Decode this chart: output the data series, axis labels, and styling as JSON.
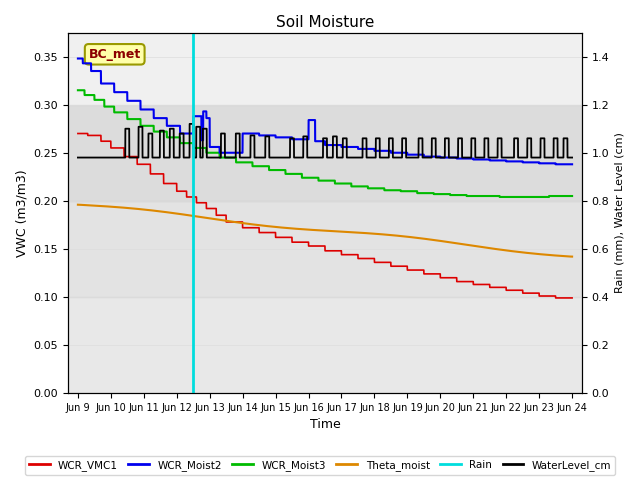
{
  "title": "Soil Moisture",
  "xlabel": "Time",
  "ylabel_left": "VWC (m3/m3)",
  "ylabel_right": "Rain (mm), Water Level (cm)",
  "xlim_days": [
    0,
    15
  ],
  "ylim_left": [
    0.0,
    0.375
  ],
  "ylim_right": [
    0.0,
    1.5
  ],
  "xtick_positions": [
    0,
    1,
    2,
    3,
    4,
    5,
    6,
    7,
    8,
    9,
    10,
    11,
    12,
    13,
    14,
    15
  ],
  "xtick_labels": [
    "Jun 9",
    "Jun 10",
    "Jun 11",
    "Jun 12",
    "Jun 13",
    "Jun 14",
    "Jun 15",
    "Jun 16",
    "Jun 17",
    "Jun 18",
    "Jun 19",
    "Jun 20",
    "Jun 21",
    "Jun 22",
    "Jun 23",
    "Jun 24"
  ],
  "annotation_text": "BC_met",
  "bg_band1": [
    0.2,
    0.3
  ],
  "bg_band2": [
    0.1,
    0.2
  ],
  "bg_band3": [
    0.0,
    0.1
  ],
  "colors": {
    "WCR_VMC1": "#dd0000",
    "WCR_Moist2": "#0000ee",
    "WCR_Moist3": "#00bb00",
    "Theta_moist": "#dd8800",
    "Rain": "#00dddd",
    "WaterLevel_cm": "#000000"
  },
  "legend_labels": [
    "WCR_VMC1",
    "WCR_Moist2",
    "WCR_Moist3",
    "Theta_moist",
    "Rain",
    "WaterLevel_cm"
  ]
}
